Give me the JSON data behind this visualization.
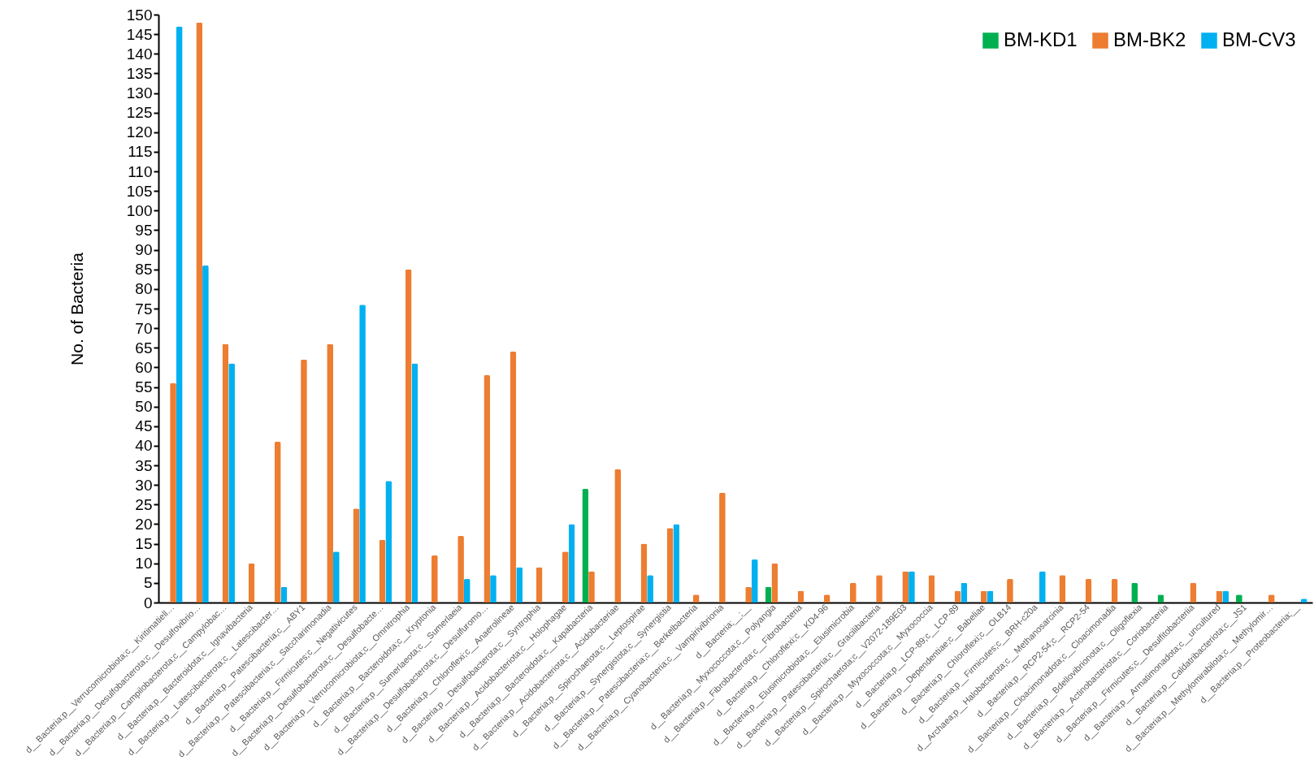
{
  "chart_data": {
    "type": "bar",
    "ylabel": "No. of Bacteria",
    "ylim": [
      0,
      150
    ],
    "yticks": [
      0,
      5,
      10,
      15,
      20,
      25,
      30,
      35,
      40,
      45,
      50,
      55,
      60,
      65,
      70,
      75,
      80,
      85,
      90,
      95,
      100,
      105,
      110,
      115,
      120,
      125,
      130,
      135,
      140,
      145,
      150
    ],
    "grid": false,
    "legend": "top right",
    "categories": [
      "d__Bacteria;p__Verrucomicrobiota;c__Kiritimatiell…",
      "d__Bacteria;p__Desulfobacterota;c__Desulfovibrio…",
      "d__Bacteria;p__Campilobacterota;c__Campylobac…",
      "d__Bacteria;p__Bacteroidota;c__Ignavibacteria",
      "d__Bacteria;p__Latescibacterota;c__Latescibacter…",
      "d__Bacteria;p__Patescibacteria;c__ABY1",
      "d__Bacteria;p__Patescibacteria;c__Saccharimonadia",
      "d__Bacteria;p__Firmicutes;c__Negativicutes",
      "d__Bacteria;p__Desulfobacterota;c__Desulfobacte…",
      "d__Bacteria;p__Verrucomicrobiota;c__Omnitrophia",
      "d__Bacteria;p__Bacteroidota;c__Kryptonia",
      "d__Bacteria;p__Sumerlaeota;c__Sumerlaeia",
      "d__Bacteria;p__Desulfobacterota;c__Desulfuromo…",
      "d__Bacteria;p__Chloroflexi;c__Anaerolineae",
      "d__Bacteria;p__Desulfobacterota;c__Syntrophia",
      "d__Bacteria;p__Acidobacteriota;c__Holophagae",
      "d__Bacteria;p__Bacteroidota;c__Kapabacteria",
      "d__Bacteria;p__Acidobacteriota;c__Acidobacteriae",
      "d__Bacteria;p__Spirochaetota;c__Leptospirae",
      "d__Bacteria;p__Synergistota;c__Synergistia",
      "d__Bacteria;p__Patescibacteria;c__Berkelbacteria",
      "d__Bacteria;p__Cyanobacteria;c__Vampirivibrionia",
      "d__Bacteria;__;__",
      "d__Bacteria;p__Myxococcota;c__Polyangia",
      "d__Bacteria;p__Fibrobacterota;c__Fibrobacteria",
      "d__Bacteria;p__Chloroflexi;c__KD4-96",
      "d__Bacteria;p__Elusimicrobiota;c__Elusimicrobia",
      "d__Bacteria;p__Patescibacteria;c__Gracilibacteria",
      "d__Bacteria;p__Spirochaetota;c__V2072-189E03",
      "d__Bacteria;p__Myxococcota;c__Myxococcia",
      "d__Bacteria;p__LCP-89;c__LCP-89",
      "d__Bacteria;p__Dependentiae;c__Babeliae",
      "d__Bacteria;p__Chloroflexi;c__OLB14",
      "d__Bacteria;p__Firmicutes;c__BRH-c20a",
      "d__Archaea;p__Halobacterota;c__Methanosarcinia",
      "d__Bacteria;p__RCP2-54;c__RCP2-54",
      "d__Bacteria;p__Cloacimonadota;c__Cloacimonadia",
      "d__Bacteria;p__Bdellovibrionota;c__Oligoflexia",
      "d__Bacteria;p__Actinobacteriota;c__Coriobacteriia",
      "d__Bacteria;p__Firmicutes;c__Desulfitobacteriia",
      "d__Bacteria;p__Armatimonadota;c__uncultured",
      "d__Bacteria;p__Caldatribacteriota;c__JS1",
      "d__Bacteria;p__Methylomirabilota;c__Methylomir…",
      "d__Bacteria;p__Proteobacteria;__"
    ],
    "series": [
      {
        "name": "BM-KD1",
        "color": "#00b050",
        "values": [
          null,
          null,
          null,
          null,
          null,
          null,
          null,
          null,
          null,
          null,
          null,
          null,
          null,
          null,
          null,
          null,
          29,
          null,
          null,
          null,
          null,
          null,
          null,
          4,
          null,
          null,
          null,
          null,
          null,
          null,
          null,
          null,
          null,
          null,
          null,
          null,
          null,
          5,
          2,
          null,
          null,
          2,
          null,
          null
        ]
      },
      {
        "name": "BM-BK2",
        "color": "#ed7d31",
        "values": [
          56,
          148,
          66,
          10,
          41,
          62,
          66,
          24,
          16,
          85,
          12,
          17,
          58,
          64,
          9,
          13,
          8,
          34,
          15,
          19,
          2,
          28,
          4,
          10,
          3,
          2,
          5,
          7,
          8,
          7,
          3,
          3,
          6,
          null,
          7,
          6,
          6,
          null,
          null,
          5,
          3,
          null,
          2,
          null
        ]
      },
      {
        "name": "BM-CV3",
        "color": "#00b0f0",
        "values": [
          147,
          86,
          61,
          null,
          4,
          null,
          13,
          76,
          31,
          61,
          null,
          6,
          7,
          9,
          null,
          20,
          null,
          null,
          7,
          20,
          null,
          null,
          11,
          null,
          null,
          null,
          null,
          null,
          8,
          null,
          5,
          3,
          null,
          8,
          null,
          null,
          null,
          null,
          null,
          null,
          3,
          null,
          null,
          1
        ]
      }
    ]
  }
}
